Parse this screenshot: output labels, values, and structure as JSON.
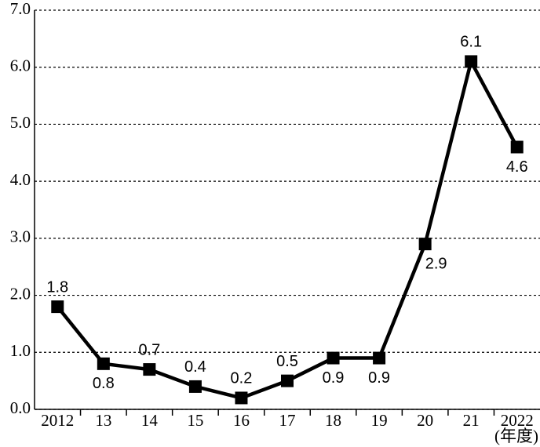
{
  "chart_data": {
    "type": "line",
    "categories": [
      "2012",
      "13",
      "14",
      "15",
      "16",
      "17",
      "18",
      "19",
      "20",
      "21",
      "2022"
    ],
    "series": [
      {
        "name": null,
        "color": "#000000",
        "values": [
          1.8,
          0.8,
          0.7,
          0.4,
          0.2,
          0.5,
          0.9,
          0.9,
          2.9,
          6.1,
          4.6
        ]
      }
    ],
    "x_label": "(年度)",
    "ylim": [
      0,
      7
    ],
    "yticks": [
      {
        "value": 0,
        "label": "0.0"
      },
      {
        "value": 1,
        "label": "1.0"
      },
      {
        "value": 2,
        "label": "2.0"
      },
      {
        "value": 3,
        "label": "3.0"
      },
      {
        "value": 4,
        "label": "4.0"
      },
      {
        "value": 5,
        "label": "5.0"
      },
      {
        "value": 6,
        "label": "6.0"
      },
      {
        "value": 7,
        "label": "7.0"
      }
    ],
    "grid": true
  }
}
